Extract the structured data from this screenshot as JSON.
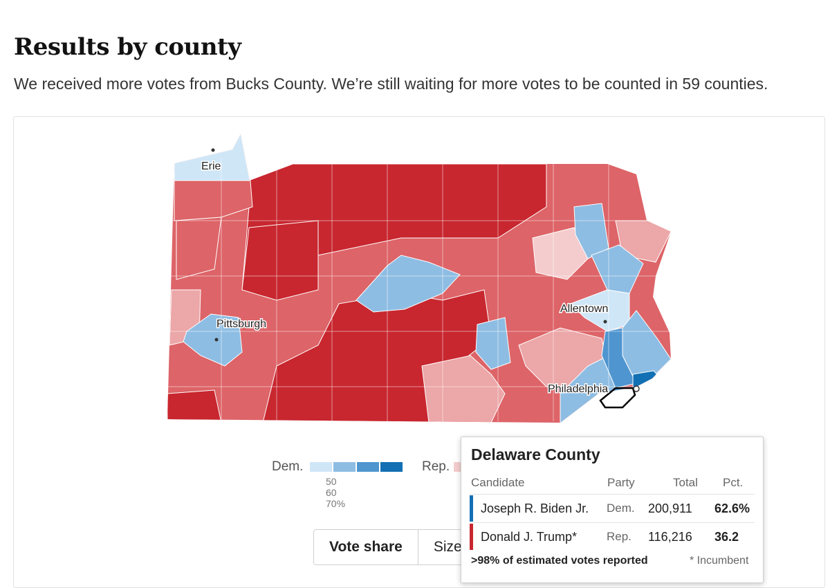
{
  "header": {
    "title": "Results by county",
    "subtitle": "We received more votes from Bucks County. We’re still waiting for more votes to be counted in 59 counties."
  },
  "map": {
    "cities": [
      {
        "name": "Erie"
      },
      {
        "name": "Pittsburgh"
      },
      {
        "name": "Allentown"
      },
      {
        "name": "Philadelphia"
      }
    ],
    "colors": {
      "rep_strong": "#c8272f",
      "rep_mid": "#dd6468",
      "rep_light": "#eca7a8",
      "rep_faint": "#f4cccd",
      "dem_faint": "#cfe6f7",
      "dem_light": "#8ebde3",
      "dem_mid": "#4f95cf",
      "dem_strong": "#1370b4"
    },
    "highlighted_county": "Delaware County"
  },
  "legend": {
    "dem_label": "Dem.",
    "rep_label": "Rep.",
    "ticks": [
      "50",
      "60",
      "70%"
    ],
    "dem_colors": [
      "#cfe6f7",
      "#8ebde3",
      "#4f95cf",
      "#1370b4"
    ]
  },
  "toggle": {
    "vote_share": "Vote share",
    "size": "Size of lead"
  },
  "tooltip": {
    "county": "Delaware County",
    "headers": {
      "candidate": "Candidate",
      "party": "Party",
      "total": "Total",
      "pct": "Pct."
    },
    "rows": [
      {
        "candidate": "Joseph R. Biden Jr.",
        "party": "Dem.",
        "total": "200,911",
        "pct": "62.6%",
        "color": "#1370b4"
      },
      {
        "candidate": "Donald J. Trump*",
        "party": "Rep.",
        "total": "116,216",
        "pct": "36.2",
        "color": "#c8272f"
      }
    ],
    "reported": ">98% of estimated votes reported",
    "incumbent_note": "* Incumbent"
  }
}
